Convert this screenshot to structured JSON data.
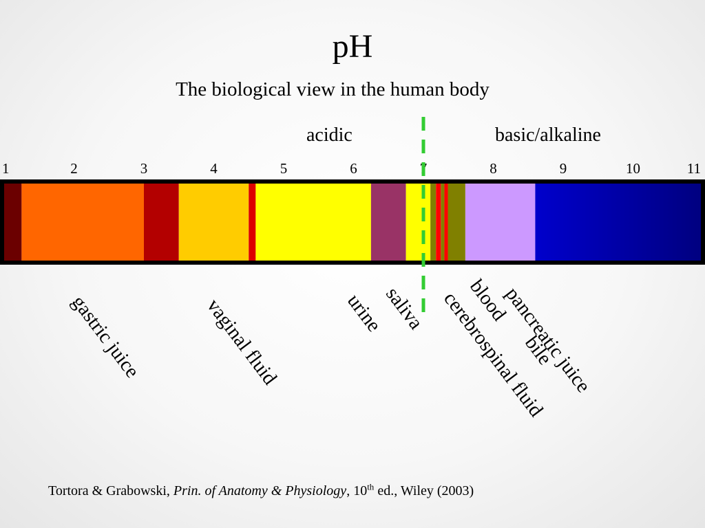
{
  "title": "pH",
  "subtitle": "The biological view in the human body",
  "labels": {
    "acidic": "acidic",
    "basic": "basic/alkaline"
  },
  "scale": {
    "ticks": [
      "1",
      "2",
      "3",
      "4",
      "5",
      "6",
      "7",
      "8",
      "9",
      "10",
      "11"
    ],
    "neutral_ph": 7,
    "neutral_line_color": "#33cc33"
  },
  "bands": [
    {
      "from": 1.0,
      "to": 1.25,
      "color": "#6b0000"
    },
    {
      "from": 1.25,
      "to": 3.0,
      "color": "#ff6600"
    },
    {
      "from": 3.0,
      "to": 3.5,
      "color": "#b30000"
    },
    {
      "from": 3.5,
      "to": 4.5,
      "color": "#ffcc00"
    },
    {
      "from": 4.5,
      "to": 4.6,
      "color": "#dd0000"
    },
    {
      "from": 4.6,
      "to": 6.25,
      "color": "#ffff00"
    },
    {
      "from": 6.25,
      "to": 6.75,
      "color": "#993366"
    },
    {
      "from": 6.75,
      "to": 7.1,
      "color": "#ffff00"
    },
    {
      "from": 7.1,
      "to": 7.18,
      "color": "#808000"
    },
    {
      "from": 7.18,
      "to": 7.25,
      "color": "#ff0000"
    },
    {
      "from": 7.25,
      "to": 7.3,
      "color": "#808000"
    },
    {
      "from": 7.3,
      "to": 7.35,
      "color": "#ff0000"
    },
    {
      "from": 7.35,
      "to": 7.6,
      "color": "#808000"
    },
    {
      "from": 7.6,
      "to": 8.6,
      "color": "#cc99ff"
    },
    {
      "from": 8.6,
      "to": 11.2,
      "color": "#0000cc",
      "gradient_to": "#000080"
    }
  ],
  "fluids": [
    {
      "name": "gastric juice"
    },
    {
      "name": "vaginal fluid"
    },
    {
      "name": "urine"
    },
    {
      "name": "saliva"
    },
    {
      "name": "blood"
    },
    {
      "name": "cerebrospinal fluid"
    },
    {
      "name": "bile"
    },
    {
      "name": "pancreatic juice"
    }
  ],
  "citation": {
    "authors": "Tortora & Grabowski, ",
    "book": "Prin. of Anatomy & Physiology",
    "edition_pre": ", 10",
    "edition_sup": "th",
    "edition_post": " ed., Wiley (2003)"
  }
}
